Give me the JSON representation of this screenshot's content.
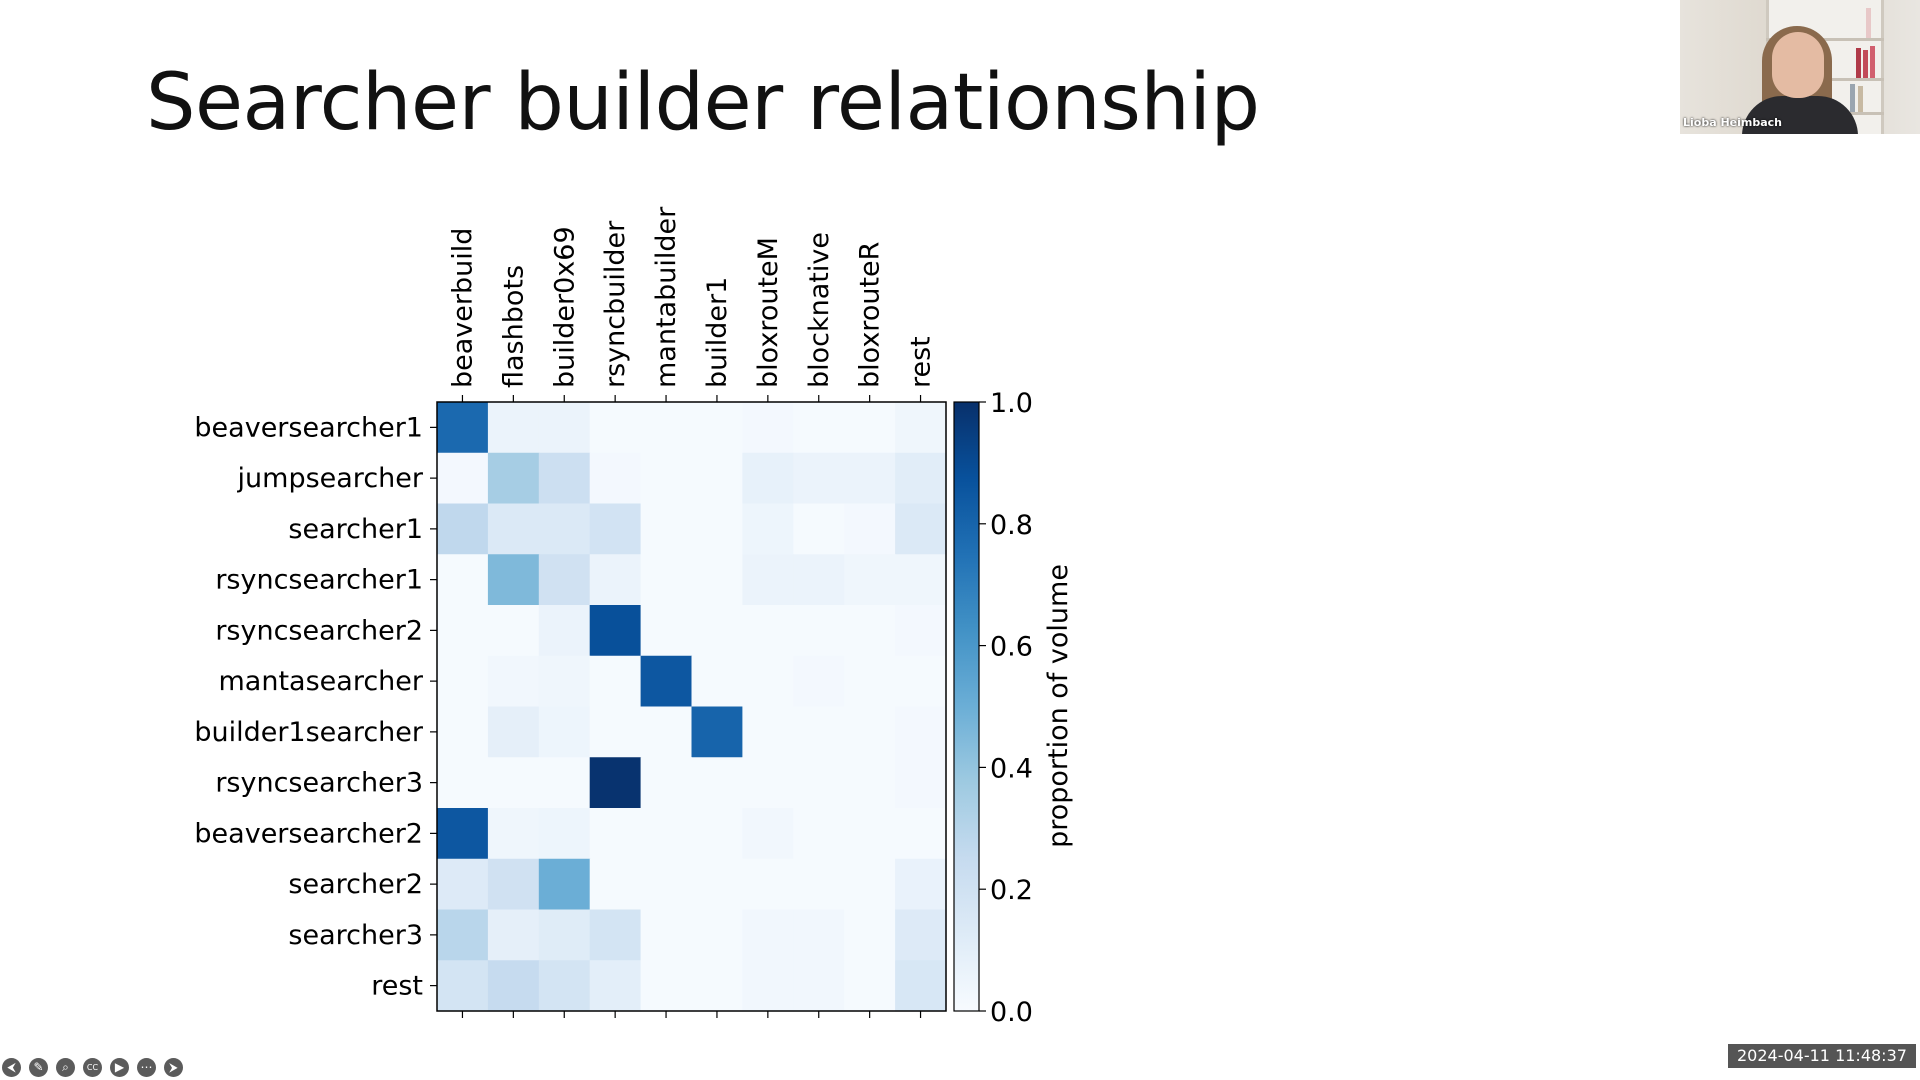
{
  "slide": {
    "title": "Searcher builder relationship"
  },
  "chart_data": {
    "type": "heatmap",
    "title": "",
    "columns": [
      "beaverbuild",
      "flashbots",
      "builder0x69",
      "rsyncbuilder",
      "mantabuilder",
      "builder1",
      "bloxrouteM",
      "blocknative",
      "bloxrouteR",
      "rest"
    ],
    "rows": [
      "beaversearcher1",
      "jumpsearcher",
      "searcher1",
      "rsyncsearcher1",
      "rsyncsearcher2",
      "mantasearcher",
      "builder1searcher",
      "rsyncsearcher3",
      "beaversearcher2",
      "searcher2",
      "searcher3",
      "rest"
    ],
    "values": [
      [
        0.78,
        0.06,
        0.06,
        0.01,
        0.01,
        0.01,
        0.02,
        0.01,
        0.01,
        0.04
      ],
      [
        0.02,
        0.35,
        0.22,
        0.02,
        0.01,
        0.01,
        0.08,
        0.06,
        0.06,
        0.11
      ],
      [
        0.27,
        0.14,
        0.14,
        0.19,
        0.01,
        0.01,
        0.05,
        0.01,
        0.02,
        0.14
      ],
      [
        0.01,
        0.45,
        0.2,
        0.06,
        0.01,
        0.01,
        0.06,
        0.06,
        0.04,
        0.04
      ],
      [
        0.01,
        0.01,
        0.06,
        0.88,
        0.01,
        0.01,
        0.01,
        0.01,
        0.01,
        0.02
      ],
      [
        0.01,
        0.03,
        0.04,
        0.01,
        0.85,
        0.01,
        0.01,
        0.02,
        0.01,
        0.01
      ],
      [
        0.01,
        0.09,
        0.05,
        0.01,
        0.01,
        0.8,
        0.01,
        0.01,
        0.01,
        0.02
      ],
      [
        0.01,
        0.01,
        0.01,
        0.99,
        0.01,
        0.01,
        0.01,
        0.01,
        0.01,
        0.02
      ],
      [
        0.85,
        0.04,
        0.05,
        0.01,
        0.01,
        0.01,
        0.03,
        0.01,
        0.01,
        0.01
      ],
      [
        0.13,
        0.2,
        0.5,
        0.01,
        0.01,
        0.01,
        0.01,
        0.01,
        0.01,
        0.07
      ],
      [
        0.29,
        0.09,
        0.12,
        0.18,
        0.01,
        0.01,
        0.03,
        0.03,
        0.01,
        0.13
      ],
      [
        0.18,
        0.25,
        0.18,
        0.1,
        0.01,
        0.01,
        0.03,
        0.03,
        0.01,
        0.16
      ]
    ],
    "colormap": "Blues",
    "colorbar": {
      "label": "proportion of volume",
      "range": [
        0.0,
        1.0
      ],
      "ticks": [
        "0.0",
        "0.2",
        "0.4",
        "0.6",
        "0.8",
        "1.0"
      ]
    },
    "x_tick_position": "top",
    "grid": false
  },
  "webcam": {
    "name": "Lioba Heimbach"
  },
  "timestamp": "2024-04-11 11:48:37",
  "toolbar": {
    "icons": [
      "back-arrow-icon",
      "pen-icon",
      "zoom-icon",
      "captions-icon",
      "video-icon",
      "more-icon",
      "forward-arrow-icon"
    ],
    "glyphs": [
      "⮜",
      "✎",
      "⌕",
      "CC",
      "▶",
      "⋯",
      "⮞"
    ]
  }
}
